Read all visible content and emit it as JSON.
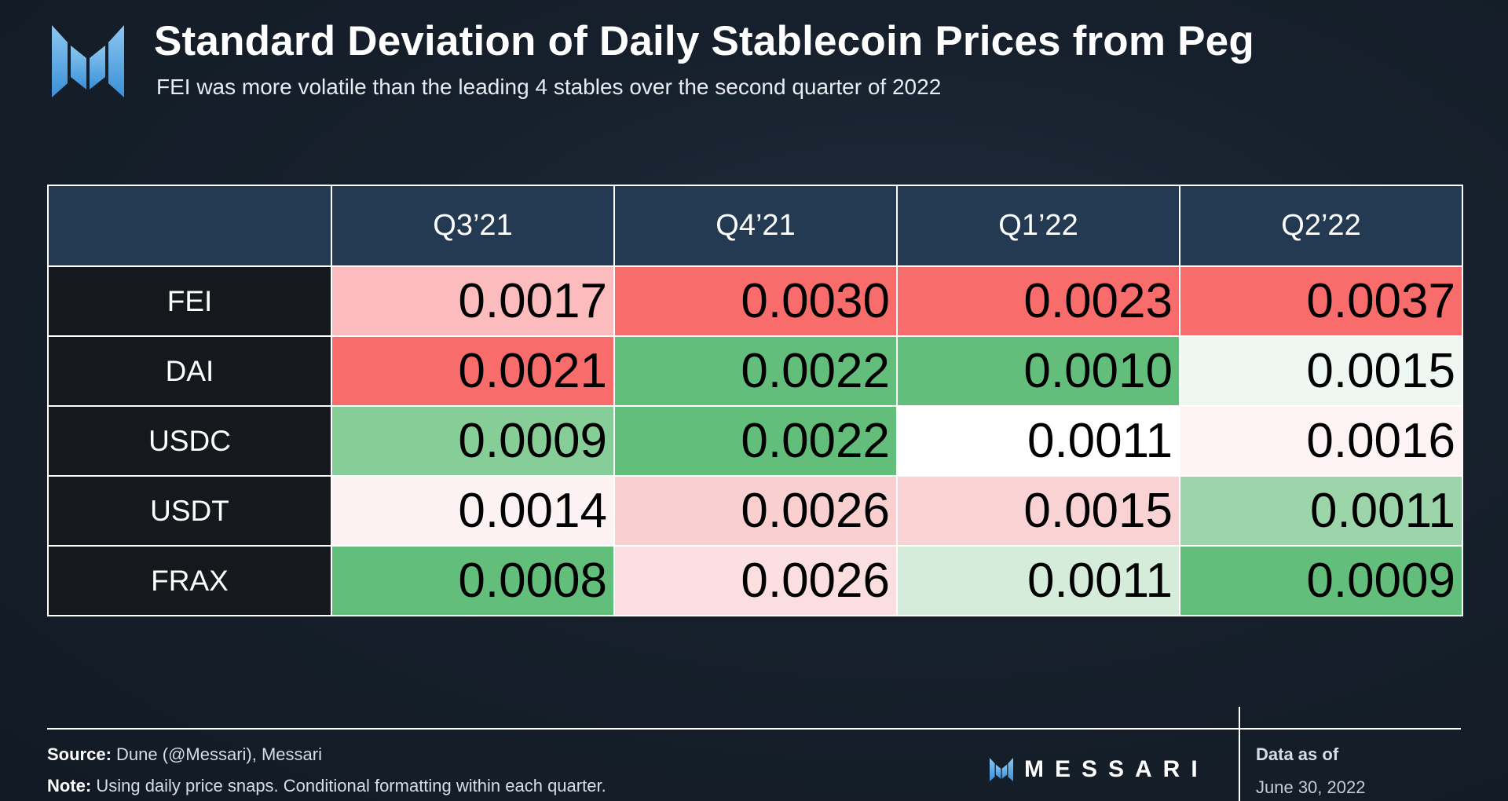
{
  "header": {
    "title": "Standard Deviation of Daily Stablecoin Prices from Peg",
    "subtitle": "FEI was more volatile than the leading 4 stables over the second quarter of 2022"
  },
  "chart_data": {
    "type": "table",
    "title": "Standard Deviation of Daily Stablecoin Prices from Peg",
    "subtitle": "FEI was more volatile than the leading 4 stables over the second quarter of 2022",
    "columns": [
      "Q3’21",
      "Q4’21",
      "Q1’22",
      "Q2’22"
    ],
    "rows": [
      {
        "label": "FEI",
        "values": [
          "0.0017",
          "0.0030",
          "0.0023",
          "0.0037"
        ],
        "colors": [
          "#fcbcbd",
          "#f86c6b",
          "#f86c6b",
          "#f86c6b"
        ]
      },
      {
        "label": "DAI",
        "values": [
          "0.0021",
          "0.0022",
          "0.0010",
          "0.0015"
        ],
        "colors": [
          "#f86c6b",
          "#63be7b",
          "#63be7b",
          "#eef7f1"
        ]
      },
      {
        "label": "USDC",
        "values": [
          "0.0009",
          "0.0022",
          "0.0011",
          "0.0016"
        ],
        "colors": [
          "#86cd98",
          "#63be7b",
          "#ffffff",
          "#fdf3f4"
        ]
      },
      {
        "label": "USDT",
        "values": [
          "0.0014",
          "0.0026",
          "0.0015",
          "0.0011"
        ],
        "colors": [
          "#fdf2f3",
          "#f9cfd0",
          "#f9d3d4",
          "#9bd5a9"
        ]
      },
      {
        "label": "FRAX",
        "values": [
          "0.0008",
          "0.0026",
          "0.0011",
          "0.0009"
        ],
        "colors": [
          "#63be7b",
          "#fbdfe0",
          "#d5ecdb",
          "#63be7b"
        ]
      }
    ]
  },
  "footer": {
    "source_label": "Source:",
    "source_text": " Dune (@Messari), Messari",
    "note_label": "Note:",
    "note_text": " Using daily price snaps. Conditional formatting within each quarter.",
    "brand": "MESSARI",
    "asof_label": "Data as of",
    "asof_date": "June 30, 2022"
  },
  "colors": {
    "header_cell": "#243a53",
    "label_cell": "#15191e",
    "logo_light": "#8cc8f0",
    "logo_dark": "#3a8fd8"
  }
}
